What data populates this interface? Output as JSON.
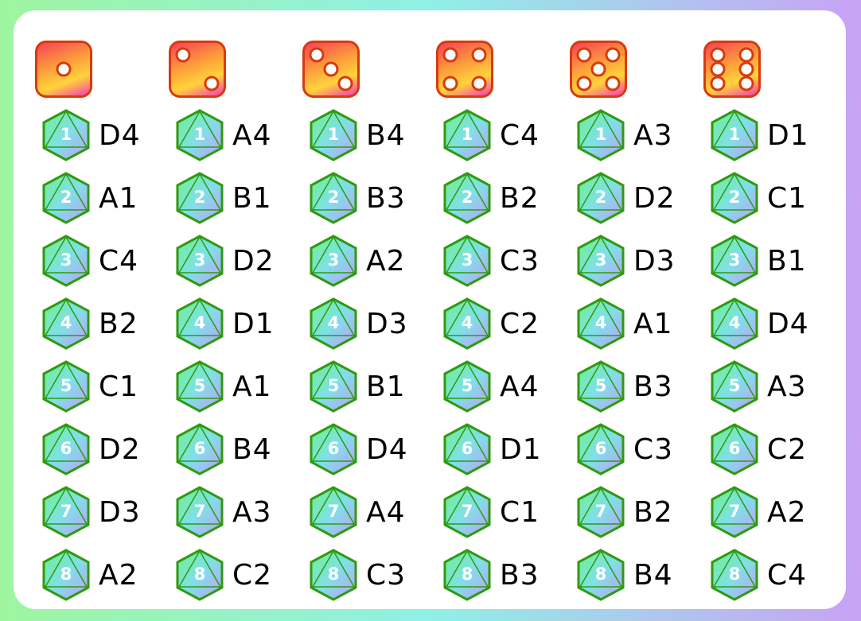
{
  "dice": [
    1,
    2,
    3,
    4,
    5,
    6
  ],
  "columns": [
    {
      "die": 1,
      "pairs": [
        "D4",
        "A1",
        "C4",
        "B2",
        "C1",
        "D2",
        "D3",
        "A2"
      ]
    },
    {
      "die": 2,
      "pairs": [
        "A4",
        "B1",
        "D2",
        "D1",
        "A1",
        "B4",
        "A3",
        "C2"
      ]
    },
    {
      "die": 3,
      "pairs": [
        "B4",
        "B3",
        "A2",
        "D3",
        "B1",
        "D4",
        "A4",
        "C3"
      ]
    },
    {
      "die": 4,
      "pairs": [
        "C4",
        "B2",
        "C3",
        "C2",
        "A4",
        "D1",
        "C1",
        "B3"
      ]
    },
    {
      "die": 5,
      "pairs": [
        "A3",
        "D2",
        "D3",
        "A1",
        "B3",
        "C3",
        "B2",
        "B4"
      ]
    },
    {
      "die": 6,
      "pairs": [
        "D1",
        "C1",
        "B1",
        "D4",
        "A3",
        "C2",
        "A2",
        "C4"
      ]
    }
  ],
  "d8_numbers": [
    "1",
    "2",
    "3",
    "4",
    "5",
    "6",
    "7",
    "8"
  ],
  "colors": {
    "die_border": "#d83a0e",
    "d8_border": "#2f9a10"
  }
}
